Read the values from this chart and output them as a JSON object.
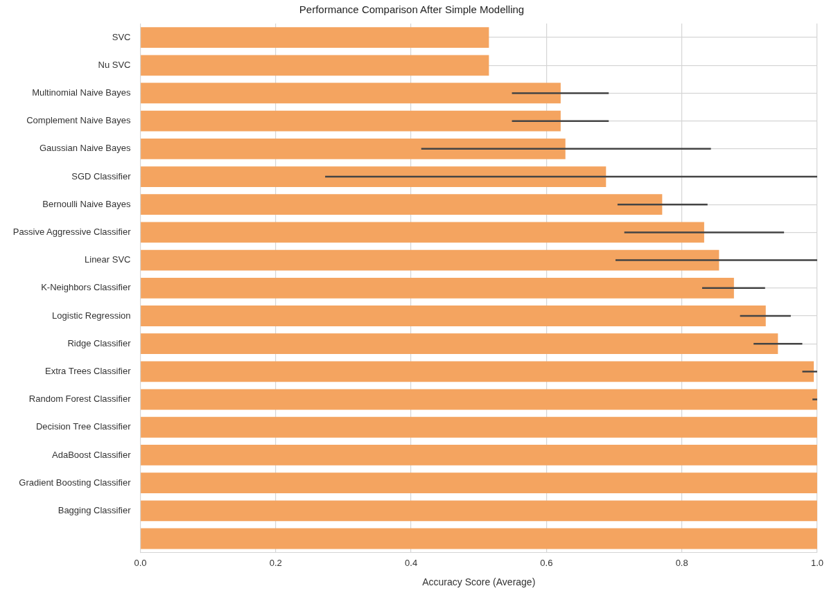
{
  "chart_data": {
    "type": "bar",
    "orientation": "horizontal",
    "title": "Performance Comparison After Simple Modelling",
    "xlabel": "Accuracy Score (Average)",
    "categories": [
      "SVC",
      "Nu SVC",
      "Multinomial Naive Bayes",
      "Complement Naive Bayes",
      "Gaussian Naive Bayes",
      "SGD Classifier",
      "Bernoulli Naive Bayes",
      "Passive Aggressive Classifier",
      "Linear SVC",
      "K-Neighbors Classifier",
      "Logistic Regression",
      "Ridge Classifier",
      "Extra Trees Classifier",
      "Random Forest Classifier",
      "Decision Tree Classifier",
      "AdaBoost Classifier",
      "Gradient Boosting Classifier",
      "Bagging Classifier",
      null
    ],
    "values": [
      0.515,
      0.515,
      0.621,
      0.621,
      0.628,
      0.688,
      0.771,
      0.833,
      0.855,
      0.877,
      0.924,
      0.942,
      0.995,
      1.0,
      1.0,
      1.0,
      1.0,
      1.0,
      1.0
    ],
    "errors": [
      null,
      null,
      [
        0.549,
        0.692
      ],
      [
        0.549,
        0.692
      ],
      [
        0.415,
        0.843
      ],
      [
        0.273,
        1.0
      ],
      [
        0.705,
        0.838
      ],
      [
        0.715,
        0.951
      ],
      [
        0.702,
        1.0
      ],
      [
        0.83,
        0.923
      ],
      [
        0.886,
        0.961
      ],
      [
        0.906,
        0.978
      ],
      [
        0.978,
        1.0
      ],
      [
        0.993,
        1.0
      ],
      null,
      null,
      null,
      null,
      null
    ],
    "color": "#f4a460",
    "xlim": [
      0,
      1
    ],
    "xticks": [
      {
        "value": 0,
        "label": "0.0"
      },
      0.2,
      0.4,
      0.6,
      0.8,
      {
        "value": 1,
        "label": "1.0"
      }
    ],
    "grid": true
  }
}
